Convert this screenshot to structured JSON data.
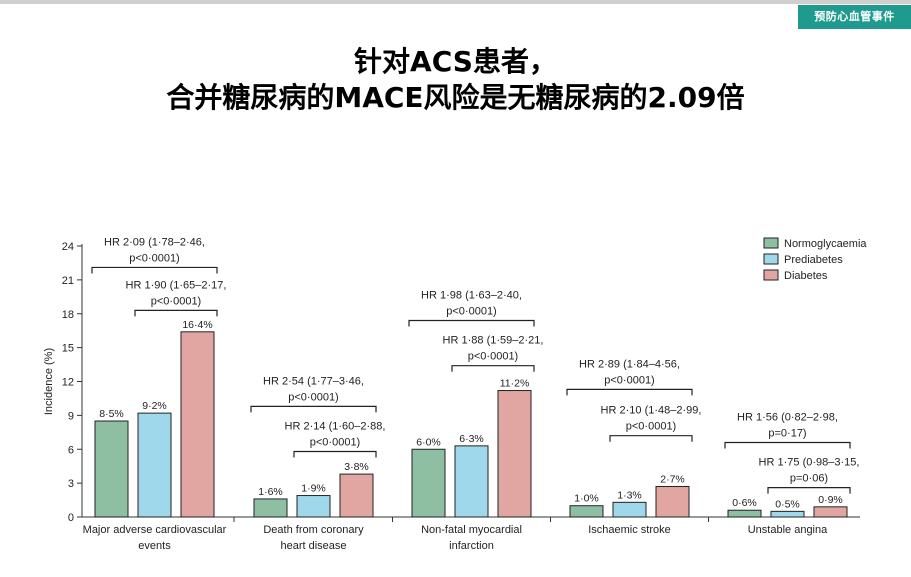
{
  "header": {
    "section_tag": "预防心血管事件",
    "title_line1": "针对ACS患者，",
    "title_line2": "合并糖尿病的MACE风险是无糖尿病的2.09倍"
  },
  "chart_data": {
    "type": "bar",
    "ylabel": "Incidence (%)",
    "ylim": [
      0,
      24
    ],
    "yticks": [
      0,
      3,
      6,
      9,
      12,
      15,
      18,
      21,
      24
    ],
    "legend_position": "top-right",
    "categories": [
      [
        "Major adverse cardiovascular",
        "events"
      ],
      [
        "Death from coronary",
        "heart disease"
      ],
      [
        "Non-fatal myocardial",
        "infarction"
      ],
      [
        "Ischaemic stroke"
      ],
      [
        "Unstable angina"
      ]
    ],
    "series": [
      {
        "name": "Normoglycaemia",
        "color": "#8fbfa3",
        "values": [
          8.5,
          1.6,
          6.0,
          1.0,
          0.6
        ],
        "labels": [
          "8·5%",
          "1·6%",
          "6·0%",
          "1·0%",
          "0·6%"
        ]
      },
      {
        "name": "Prediabetes",
        "color": "#9fd8ea",
        "values": [
          9.2,
          1.9,
          6.3,
          1.3,
          0.5
        ],
        "labels": [
          "9·2%",
          "1·9%",
          "6·3%",
          "1·3%",
          "0·5%"
        ]
      },
      {
        "name": "Diabetes",
        "color": "#e2a6a2",
        "values": [
          16.4,
          3.8,
          11.2,
          2.7,
          0.9
        ],
        "labels": [
          "16·4%",
          "3·8%",
          "11·2%",
          "2·7%",
          "0·9%"
        ]
      }
    ],
    "annotations": [
      {
        "category": 0,
        "from": 0,
        "to": 2,
        "level": 22.1,
        "lines": [
          "HR 2·09 (1·78–2·46,",
          "p<0·0001)"
        ]
      },
      {
        "category": 0,
        "from": 1,
        "to": 2,
        "level": 18.3,
        "lines": [
          "HR 1·90 (1·65–2·17,",
          "p<0·0001)"
        ]
      },
      {
        "category": 1,
        "from": 0,
        "to": 2,
        "level": 9.8,
        "lines": [
          "HR 2·54 (1·77–3·46,",
          "p<0·0001)"
        ]
      },
      {
        "category": 1,
        "from": 1,
        "to": 2,
        "level": 5.8,
        "lines": [
          "HR 2·14 (1·60–2·88,",
          "p<0·0001)"
        ]
      },
      {
        "category": 2,
        "from": 0,
        "to": 2,
        "level": 17.4,
        "lines": [
          "HR 1·98 (1·63–2·40,",
          "p<0·0001)"
        ]
      },
      {
        "category": 2,
        "from": 1,
        "to": 2,
        "level": 13.4,
        "lines": [
          "HR 1·88 (1·59–2·21,",
          "p<0·0001)"
        ]
      },
      {
        "category": 3,
        "from": 0,
        "to": 2,
        "level": 11.3,
        "lines": [
          "HR 2·89 (1·84–4·56,",
          "p<0·0001)"
        ]
      },
      {
        "category": 3,
        "from": 1,
        "to": 2,
        "level": 7.2,
        "lines": [
          "HR 2·10 (1·48–2·99,",
          "p<0·0001)"
        ]
      },
      {
        "category": 4,
        "from": 0,
        "to": 2,
        "level": 6.6,
        "lines": [
          "HR 1·56 (0·82–2·98,",
          "p=0·17)"
        ]
      },
      {
        "category": 4,
        "from": 1,
        "to": 2,
        "level": 2.6,
        "lines": [
          "HR 1·75 (0·98–3·15,",
          "p=0·06)"
        ]
      }
    ]
  }
}
